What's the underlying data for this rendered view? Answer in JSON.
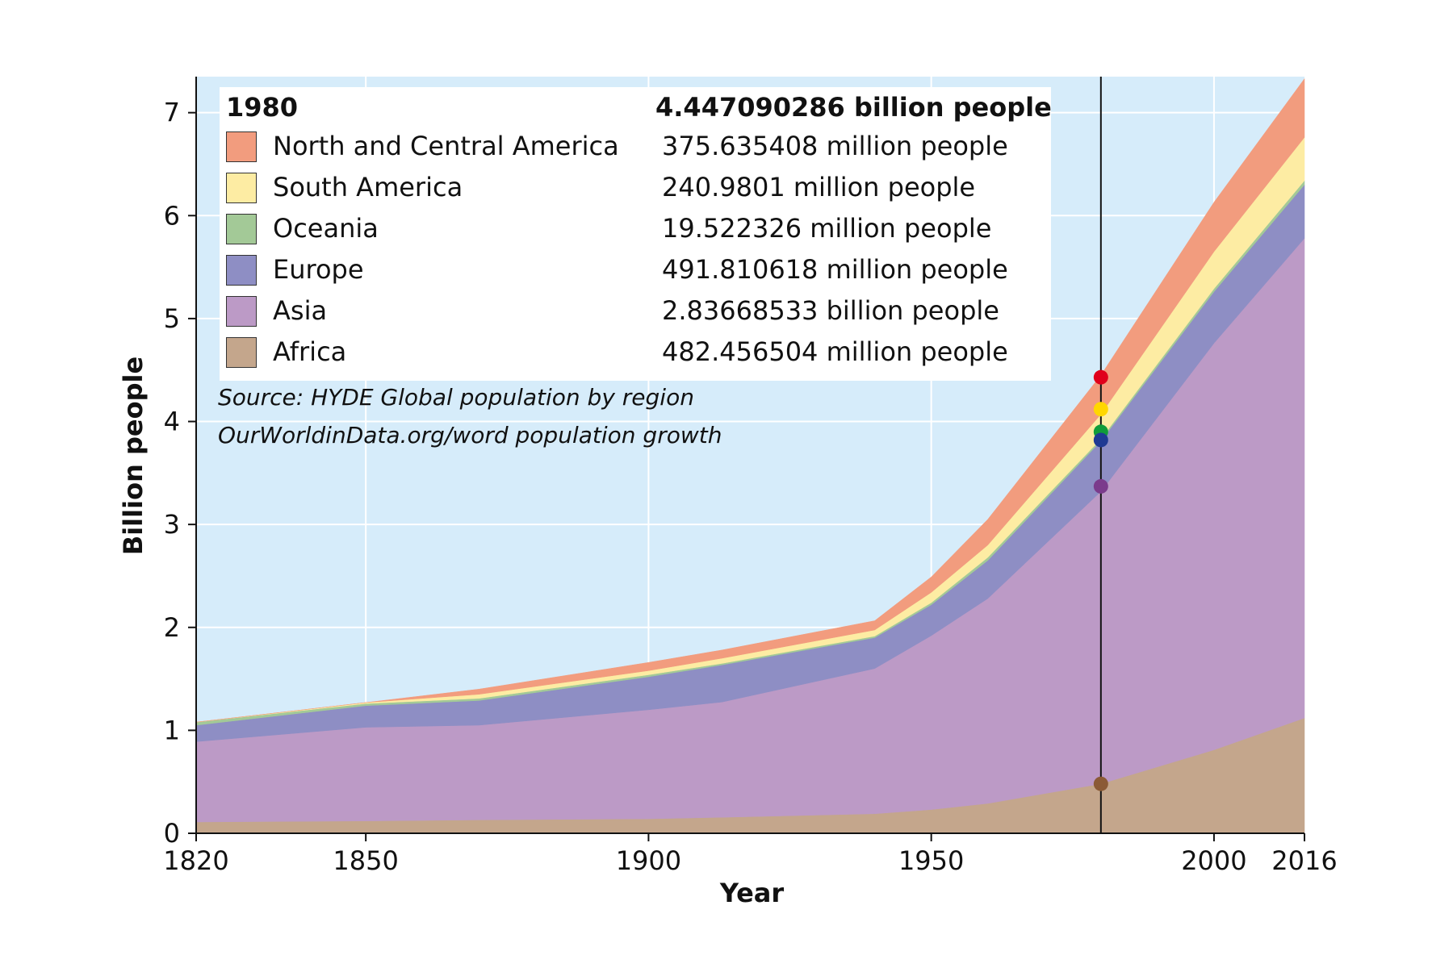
{
  "chart_data": {
    "type": "area",
    "stacked": true,
    "xlabel": "Year",
    "ylabel": "Billion people",
    "xlim": [
      1820,
      2016
    ],
    "ylim": [
      0,
      7.35
    ],
    "xticks": [
      1820,
      1850,
      1900,
      1950,
      2000,
      2016
    ],
    "yticks": [
      0,
      1,
      2,
      3,
      4,
      5,
      6,
      7
    ],
    "grid": true,
    "background": "#d6ecfa",
    "x": [
      1820,
      1850,
      1870,
      1900,
      1913,
      1940,
      1950,
      1960,
      1980,
      2000,
      2016
    ],
    "series": [
      {
        "name": "Africa",
        "color": "#c4a68c",
        "values": [
          0.11,
          0.12,
          0.13,
          0.14,
          0.155,
          0.19,
          0.23,
          0.29,
          0.48,
          0.81,
          1.12
        ]
      },
      {
        "name": "Asia",
        "color": "#bc9ac6",
        "values": [
          0.78,
          0.91,
          0.92,
          1.06,
          1.12,
          1.41,
          1.69,
          1.99,
          2.84,
          3.95,
          4.66
        ]
      },
      {
        "name": "Europe",
        "color": "#8e8ec4",
        "values": [
          0.16,
          0.21,
          0.24,
          0.32,
          0.36,
          0.3,
          0.3,
          0.37,
          0.49,
          0.5,
          0.52
        ]
      },
      {
        "name": "Oceania",
        "color": "#a3c997",
        "values": [
          0.03,
          0.02,
          0.02,
          0.02,
          0.015,
          0.015,
          0.02,
          0.03,
          0.02,
          0.03,
          0.04
        ]
      },
      {
        "name": "South America",
        "color": "#fdeca3",
        "values": [
          0.0,
          0.01,
          0.04,
          0.04,
          0.05,
          0.06,
          0.1,
          0.12,
          0.24,
          0.36,
          0.42
        ]
      },
      {
        "name": "North and Central America",
        "color": "#f29c7e",
        "values": [
          0.0,
          0.0,
          0.05,
          0.08,
          0.08,
          0.09,
          0.15,
          0.25,
          0.38,
          0.48,
          0.57
        ]
      }
    ],
    "highlight": {
      "year": 1980,
      "points": [
        {
          "y": 4.43,
          "color": "#e0001b"
        },
        {
          "y": 4.12,
          "color": "#ffd700"
        },
        {
          "y": 3.9,
          "color": "#109c3a"
        },
        {
          "y": 3.82,
          "color": "#1f3a93"
        },
        {
          "y": 3.37,
          "color": "#7b3b8c"
        },
        {
          "y": 0.48,
          "color": "#8b5a36"
        }
      ]
    },
    "legend": {
      "year": "1980",
      "total": "4.447090286 billion people",
      "rows": [
        {
          "label": "North and Central America",
          "value": "375.635408 million people",
          "color": "#f29c7e"
        },
        {
          "label": "South America",
          "value": "240.9801 million people",
          "color": "#fdeca3"
        },
        {
          "label": "Oceania",
          "value": "19.522326 million people",
          "color": "#a3c997"
        },
        {
          "label": "Europe",
          "value": "491.810618 million people",
          "color": "#8e8ec4"
        },
        {
          "label": "Asia",
          "value": "2.83668533 billion people",
          "color": "#bc9ac6"
        },
        {
          "label": "Africa",
          "value": "482.456504 million people",
          "color": "#c4a68c"
        }
      ]
    },
    "source_lines": [
      "Source: HYDE Global population by region",
      "OurWorldinData.org/word population growth"
    ]
  }
}
